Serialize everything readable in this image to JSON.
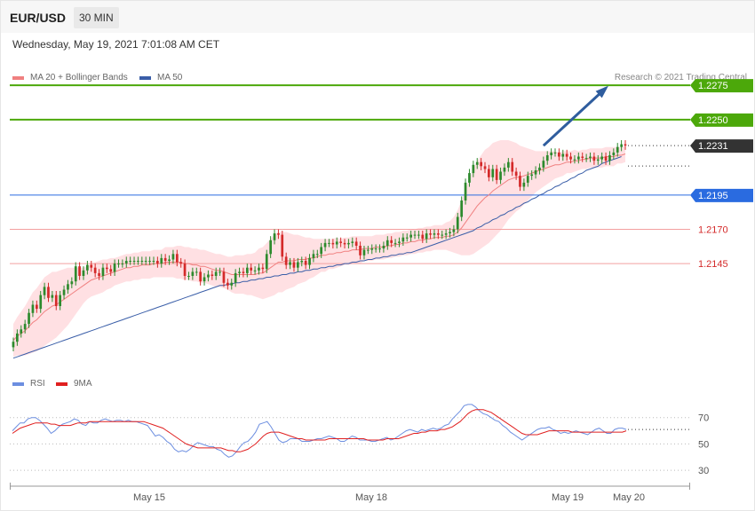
{
  "header": {
    "symbol": "EUR/USD",
    "timeframe": "30 MIN",
    "timestamp": "Wednesday, May 19, 2021 7:01:08 AM CET",
    "copyright": "Research © 2021 Trading Central"
  },
  "colors": {
    "bull": "#2d8a2d",
    "bear": "#d42a2a",
    "ma20": "#f08080",
    "band_fill": "#ffe0e3",
    "ma50": "#3a5ea8",
    "target": "#4ca80a",
    "pivot": "#2a6be0",
    "support": "#d42a2a",
    "current": "#333333",
    "arrow": "#2f5d9e",
    "rsi": "#6c8ee0",
    "rsi_ma": "#e02020"
  },
  "legend": {
    "ma20_label": "MA 20 + Bollinger Bands",
    "ma50_label": "MA 50",
    "rsi_label": "RSI",
    "rsi_ma_label": "9MA"
  },
  "chart_data": [
    {
      "type": "candlestick",
      "title": "EUR/USD 30 MIN",
      "x_labels": [
        "May 15",
        "May 18",
        "May 19",
        "May 20"
      ],
      "ylim": [
        1.207,
        1.229
      ],
      "levels": [
        {
          "value": 1.2275,
          "label": "1.2275",
          "kind": "target"
        },
        {
          "value": 1.225,
          "label": "1.2250",
          "kind": "target"
        },
        {
          "value": 1.2231,
          "label": "1.2231",
          "kind": "current"
        },
        {
          "value": 1.2195,
          "label": "1.2195",
          "kind": "pivot"
        },
        {
          "value": 1.217,
          "label": "1.2170",
          "kind": "support"
        },
        {
          "value": 1.2145,
          "label": "1.2145",
          "kind": "support"
        }
      ],
      "arrow": {
        "from": {
          "bar": 136,
          "value": 1.2231
        },
        "to": {
          "bar": 152,
          "value": 1.2273
        }
      },
      "close": [
        1.2088,
        1.2094,
        1.2097,
        1.2101,
        1.2109,
        1.2115,
        1.2112,
        1.2122,
        1.2128,
        1.212,
        1.2122,
        1.2114,
        1.2122,
        1.2126,
        1.213,
        1.2132,
        1.2143,
        1.2136,
        1.214,
        1.2144,
        1.2142,
        1.2138,
        1.2136,
        1.2142,
        1.2141,
        1.2139,
        1.2145,
        1.2145,
        1.2145,
        1.2147,
        1.2147,
        1.2147,
        1.2147,
        1.2147,
        1.2147,
        1.2147,
        1.2147,
        1.2145,
        1.2149,
        1.2147,
        1.2148,
        1.2152,
        1.2146,
        1.2145,
        1.2136,
        1.2136,
        1.2139,
        1.2139,
        1.2132,
        1.2135,
        1.2137,
        1.2136,
        1.2139,
        1.2139,
        1.2131,
        1.2129,
        1.2131,
        1.2138,
        1.2139,
        1.2138,
        1.2142,
        1.214,
        1.214,
        1.2142,
        1.2141,
        1.2152,
        1.2162,
        1.2167,
        1.2166,
        1.215,
        1.2144,
        1.2146,
        1.2142,
        1.2146,
        1.2147,
        1.2144,
        1.2149,
        1.2152,
        1.2152,
        1.2157,
        1.216,
        1.216,
        1.2159,
        1.2161,
        1.216,
        1.2159,
        1.216,
        1.2161,
        1.2158,
        1.2151,
        1.2155,
        1.2155,
        1.2156,
        1.2156,
        1.2156,
        1.2158,
        1.2162,
        1.216,
        1.216,
        1.2161,
        1.2164,
        1.2164,
        1.2166,
        1.2166,
        1.2166,
        1.2163,
        1.2167,
        1.2166,
        1.2167,
        1.2166,
        1.2166,
        1.2167,
        1.2168,
        1.217,
        1.2179,
        1.2191,
        1.2204,
        1.2211,
        1.2217,
        1.2219,
        1.2216,
        1.2214,
        1.2208,
        1.2214,
        1.2206,
        1.2212,
        1.2215,
        1.2219,
        1.2212,
        1.2209,
        1.2201,
        1.2204,
        1.2209,
        1.221,
        1.2213,
        1.2215,
        1.222,
        1.2224,
        1.2226,
        1.2226,
        1.2223,
        1.2225,
        1.2223,
        1.2221,
        1.2221,
        1.2223,
        1.2222,
        1.2222,
        1.2223,
        1.222,
        1.2221,
        1.2223,
        1.222,
        1.2224,
        1.2226,
        1.223,
        1.2232,
        1.2231
      ],
      "ma20": [
        1.2089,
        1.2092,
        1.2094,
        1.2096,
        1.2099,
        1.2102,
        1.2104,
        1.2107,
        1.211,
        1.2112,
        1.2114,
        1.2115,
        1.2117,
        1.2119,
        1.2121,
        1.2123,
        1.2125,
        1.2127,
        1.2129,
        1.2131,
        1.2133,
        1.2134,
        1.2135,
        1.2136,
        1.2137,
        1.2138,
        1.2139,
        1.214,
        1.2141,
        1.2142,
        1.2142,
        1.2143,
        1.2143,
        1.2144,
        1.2144,
        1.2144,
        1.2145,
        1.2145,
        1.2145,
        1.2146,
        1.2146,
        1.2146,
        1.2146,
        1.2146,
        1.2145,
        1.2145,
        1.2144,
        1.2144,
        1.2143,
        1.2143,
        1.2142,
        1.2141,
        1.214,
        1.214,
        1.2139,
        1.2138,
        1.2137,
        1.2137,
        1.2137,
        1.2137,
        1.2137,
        1.2137,
        1.2137,
        1.2138,
        1.2138,
        1.214,
        1.2142,
        1.2144,
        1.2146,
        1.2146,
        1.2147,
        1.2147,
        1.2147,
        1.2148,
        1.2148,
        1.2148,
        1.2149,
        1.2149,
        1.215,
        1.2151,
        1.2151,
        1.2152,
        1.2152,
        1.2153,
        1.2153,
        1.2154,
        1.2154,
        1.2155,
        1.2155,
        1.2155,
        1.2156,
        1.2156,
        1.2156,
        1.2157,
        1.2157,
        1.2157,
        1.2158,
        1.2158,
        1.2159,
        1.2159,
        1.216,
        1.216,
        1.2161,
        1.2161,
        1.2162,
        1.2162,
        1.2163,
        1.2163,
        1.2164,
        1.2164,
        1.2164,
        1.2165,
        1.2165,
        1.2166,
        1.2168,
        1.2171,
        1.2175,
        1.2179,
        1.2183,
        1.2187,
        1.219,
        1.2193,
        1.2195,
        1.2198,
        1.22,
        1.2202,
        1.2204,
        1.2206,
        1.2207,
        1.2208,
        1.2208,
        1.2209,
        1.221,
        1.2211,
        1.2212,
        1.2213,
        1.2214,
        1.2215,
        1.2216,
        1.2217,
        1.2217,
        1.2218,
        1.2219,
        1.2219,
        1.222,
        1.222,
        1.2221,
        1.2221,
        1.2222,
        1.2222,
        1.2222,
        1.2222,
        1.2223,
        1.2223,
        1.2223,
        1.2224,
        1.2224,
        1.2225
      ],
      "bb_width": [
        0.0012,
        0.0014,
        0.0016,
        0.0018,
        0.002,
        0.0022,
        0.0023,
        0.0024,
        0.0025,
        0.0025,
        0.0025,
        0.0024,
        0.0023,
        0.0022,
        0.0021,
        0.0019,
        0.0017,
        0.0015,
        0.0013,
        0.0012,
        0.0012,
        0.0012,
        0.0012,
        0.0012,
        0.0011,
        0.0011,
        0.001,
        0.001,
        0.001,
        0.001,
        0.001,
        0.001,
        0.001,
        0.001,
        0.001,
        0.001,
        0.001,
        0.001,
        0.001,
        0.0011,
        0.0011,
        0.0011,
        0.0012,
        0.0012,
        0.0012,
        0.0012,
        0.0012,
        0.0012,
        0.0012,
        0.0012,
        0.0012,
        0.0012,
        0.0012,
        0.0012,
        0.0012,
        0.0012,
        0.0013,
        0.0014,
        0.0014,
        0.0014,
        0.0015,
        0.0015,
        0.0016,
        0.0018,
        0.0019,
        0.002,
        0.0021,
        0.0022,
        0.0022,
        0.0022,
        0.0021,
        0.002,
        0.0019,
        0.0018,
        0.0017,
        0.0016,
        0.0015,
        0.0014,
        0.0013,
        0.0012,
        0.0012,
        0.0011,
        0.0011,
        0.0011,
        0.001,
        0.001,
        0.001,
        0.001,
        0.001,
        0.001,
        0.0009,
        0.0009,
        0.0009,
        0.0009,
        0.0009,
        0.0009,
        0.0009,
        0.0009,
        0.0009,
        0.0009,
        0.0009,
        0.0009,
        0.0009,
        0.0009,
        0.0009,
        0.0009,
        0.0009,
        0.0009,
        0.0009,
        0.0009,
        0.0009,
        0.001,
        0.0011,
        0.0013,
        0.0016,
        0.002,
        0.0024,
        0.0028,
        0.0031,
        0.0033,
        0.0034,
        0.0035,
        0.0035,
        0.0035,
        0.0034,
        0.0033,
        0.0031,
        0.0029,
        0.0027,
        0.0025,
        0.0023,
        0.0021,
        0.0019,
        0.0017,
        0.0015,
        0.0014,
        0.0013,
        0.0012,
        0.0011,
        0.001,
        0.0009,
        0.0009,
        0.0008,
        0.0008,
        0.0008,
        0.0007,
        0.0007,
        0.0007,
        0.0007,
        0.0007,
        0.0007,
        0.0007,
        0.0007,
        0.0007,
        0.0007,
        0.0006,
        0.0006,
        0.0006
      ],
      "ma50": [
        1.2076,
        1.2077,
        1.2078,
        1.2079,
        1.208,
        1.2081,
        1.2082,
        1.2083,
        1.2084,
        1.2085,
        1.2086,
        1.2087,
        1.2088,
        1.2089,
        1.209,
        1.2091,
        1.2092,
        1.2093,
        1.2094,
        1.2095,
        1.2096,
        1.2097,
        1.2098,
        1.2099,
        1.21,
        1.2101,
        1.2102,
        1.2103,
        1.2104,
        1.2105,
        1.2106,
        1.2107,
        1.2108,
        1.2109,
        1.211,
        1.2111,
        1.2112,
        1.2113,
        1.2114,
        1.2115,
        1.2116,
        1.2117,
        1.2118,
        1.2119,
        1.212,
        1.2121,
        1.2122,
        1.2123,
        1.2124,
        1.2125,
        1.2126,
        1.2127,
        1.2128,
        1.2129,
        1.2129,
        1.213,
        1.213,
        1.2131,
        1.2131,
        1.2132,
        1.2132,
        1.2133,
        1.2133,
        1.2134,
        1.2134,
        1.2135,
        1.2135,
        1.2136,
        1.2136,
        1.2137,
        1.2137,
        1.2138,
        1.2138,
        1.2139,
        1.2139,
        1.214,
        1.214,
        1.2141,
        1.2141,
        1.2142,
        1.2142,
        1.2143,
        1.2143,
        1.2144,
        1.2144,
        1.2145,
        1.2145,
        1.2146,
        1.2146,
        1.2147,
        1.2147,
        1.2148,
        1.2148,
        1.2149,
        1.2149,
        1.215,
        1.215,
        1.2151,
        1.2151,
        1.2152,
        1.2152,
        1.2153,
        1.2153,
        1.2154,
        1.2155,
        1.2156,
        1.2157,
        1.2158,
        1.2159,
        1.216,
        1.2161,
        1.2162,
        1.2163,
        1.2164,
        1.2165,
        1.2166,
        1.2167,
        1.2168,
        1.2169,
        1.2171,
        1.2172,
        1.2174,
        1.2175,
        1.2177,
        1.2178,
        1.218,
        1.2181,
        1.2183,
        1.2184,
        1.2186,
        1.2187,
        1.2189,
        1.219,
        1.2192,
        1.2193,
        1.2195,
        1.2196,
        1.2198,
        1.2199,
        1.2201,
        1.2202,
        1.2204,
        1.2205,
        1.2207,
        1.2208,
        1.221,
        1.2211,
        1.2213,
        1.2214,
        1.2215,
        1.2216,
        1.2218,
        1.2219,
        1.222,
        1.2221,
        1.2222,
        1.2223
      ]
    },
    {
      "type": "line",
      "title": "RSI",
      "ylim": [
        20,
        90
      ],
      "gridlines": [
        70,
        50,
        30
      ],
      "series": [
        {
          "name": "RSI",
          "values": [
            60,
            63,
            66,
            66,
            69,
            70,
            70,
            68,
            65,
            62,
            58,
            60,
            63,
            65,
            66,
            67,
            69,
            68,
            65,
            64,
            67,
            66,
            66,
            68,
            69,
            68,
            67,
            68,
            68,
            67,
            68,
            67,
            67,
            66,
            65,
            64,
            60,
            56,
            57,
            55,
            52,
            50,
            46,
            44,
            45,
            44,
            46,
            49,
            51,
            50,
            49,
            48,
            48,
            46,
            45,
            42,
            40,
            41,
            44,
            48,
            51,
            52,
            55,
            59,
            65,
            66,
            67,
            63,
            58,
            53,
            51,
            52,
            54,
            54,
            54,
            52,
            52,
            52,
            53,
            54,
            54,
            55,
            56,
            55,
            54,
            52,
            52,
            54,
            56,
            55,
            53,
            53,
            53,
            52,
            52,
            53,
            54,
            55,
            53,
            54,
            56,
            58,
            60,
            61,
            60,
            59,
            61,
            60,
            61,
            62,
            61,
            62,
            64,
            65,
            69,
            72,
            75,
            79,
            80,
            80,
            78,
            75,
            73,
            72,
            70,
            68,
            67,
            64,
            62,
            59,
            57,
            55,
            53,
            55,
            57,
            59,
            61,
            62,
            62,
            63,
            61,
            60,
            58,
            59,
            58,
            59,
            60,
            59,
            58,
            57,
            59,
            61,
            62,
            60,
            58,
            58,
            61,
            62,
            62,
            61
          ]
        },
        {
          "name": "9MA",
          "values": [
            58,
            60,
            62,
            63,
            64,
            65,
            66,
            66,
            66,
            66,
            65,
            65,
            64,
            64,
            64,
            64,
            65,
            66,
            66,
            66,
            67,
            67,
            67,
            67,
            67,
            67,
            67,
            67,
            67,
            67,
            67,
            67,
            67,
            67,
            67,
            66,
            65,
            64,
            63,
            62,
            60,
            58,
            56,
            54,
            52,
            50,
            49,
            48,
            47,
            47,
            47,
            47,
            47,
            47,
            47,
            46,
            45,
            45,
            44,
            44,
            45,
            46,
            48,
            50,
            53,
            56,
            58,
            59,
            59,
            59,
            58,
            57,
            56,
            55,
            54,
            54,
            53,
            53,
            53,
            53,
            53,
            53,
            54,
            54,
            54,
            54,
            54,
            54,
            54,
            54,
            54,
            54,
            53,
            53,
            53,
            53,
            53,
            54,
            54,
            54,
            54,
            55,
            56,
            57,
            58,
            58,
            59,
            59,
            60,
            60,
            60,
            61,
            61,
            62,
            63,
            65,
            67,
            70,
            73,
            75,
            76,
            76,
            76,
            75,
            74,
            72,
            70,
            68,
            66,
            64,
            62,
            60,
            58,
            57,
            57,
            57,
            57,
            58,
            59,
            60,
            60,
            60,
            60,
            60,
            60,
            59,
            59,
            59,
            59,
            59,
            59,
            59,
            59,
            59,
            59,
            59,
            59,
            59,
            59,
            60
          ]
        }
      ]
    }
  ]
}
